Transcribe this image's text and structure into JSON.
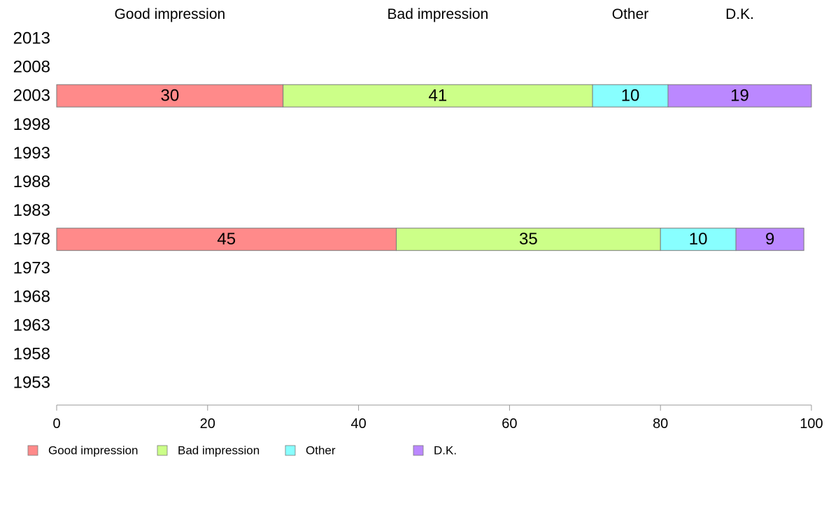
{
  "chart_data": {
    "type": "bar",
    "orientation": "horizontal",
    "stacked": true,
    "categories": [
      "2013",
      "2008",
      "2003",
      "1998",
      "1993",
      "1988",
      "1983",
      "1978",
      "1973",
      "1968",
      "1963",
      "1958",
      "1953"
    ],
    "series": [
      {
        "name": "Good impression",
        "color": "#ff8a8a",
        "values": [
          null,
          null,
          30,
          null,
          null,
          null,
          null,
          45,
          null,
          null,
          null,
          null,
          null
        ]
      },
      {
        "name": "Bad impression",
        "color": "#ccff88",
        "values": [
          null,
          null,
          41,
          null,
          null,
          null,
          null,
          35,
          null,
          null,
          null,
          null,
          null
        ]
      },
      {
        "name": "Other",
        "color": "#88ffff",
        "values": [
          null,
          null,
          10,
          null,
          null,
          null,
          null,
          10,
          null,
          null,
          null,
          null,
          null
        ]
      },
      {
        "name": "D.K.",
        "color": "#bb88ff",
        "values": [
          null,
          null,
          19,
          null,
          null,
          null,
          null,
          9,
          null,
          null,
          null,
          null,
          null
        ]
      }
    ],
    "column_headers": [
      "Good impression",
      "Bad impression",
      "Other",
      "D.K."
    ],
    "xlim": [
      0,
      100
    ],
    "xticks": [
      0,
      20,
      40,
      60,
      80,
      100
    ],
    "grid": false,
    "legend_position": "bottom-left",
    "title": "",
    "xlabel": "",
    "ylabel": ""
  }
}
